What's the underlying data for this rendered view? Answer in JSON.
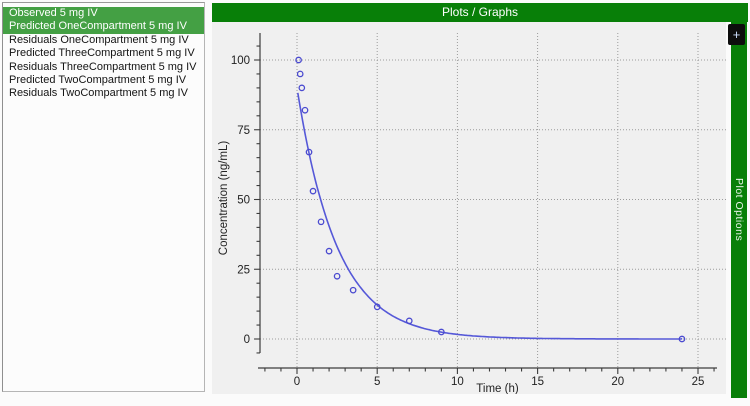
{
  "header": {
    "title": "Plots / Graphs"
  },
  "sidebar": {
    "items": [
      {
        "label": "Observed 5 mg IV",
        "selected": true
      },
      {
        "label": "Predicted OneCompartment 5 mg IV",
        "selected": true
      },
      {
        "label": "Residuals OneCompartment 5 mg IV",
        "selected": false
      },
      {
        "label": "Predicted ThreeCompartment 5 mg IV",
        "selected": false
      },
      {
        "label": "Residuals ThreeCompartment 5 mg IV",
        "selected": false
      },
      {
        "label": "Predicted TwoCompartment 5 mg IV",
        "selected": false
      },
      {
        "label": "Residuals TwoCompartment 5 mg IV",
        "selected": false
      }
    ]
  },
  "side_tab": {
    "label": "Plot Options",
    "add_button_label": "+"
  },
  "colors": {
    "header_green": "#087f08",
    "selection_green": "#44a044",
    "plot_bg": "#f0f0f0",
    "grid_gray": "#9b9b9b",
    "axis_gray": "#3c3c3c",
    "tick_text": "#222222",
    "curve_blue": "#5558d8",
    "point_blue": "#4a4ad0",
    "button_black": "#0d0d0d"
  },
  "chart_data": {
    "type": "scatter",
    "title": "",
    "xlabel": "Time (h)",
    "ylabel": "Concentration (ng/mL)",
    "xlim": [
      -2,
      26.5
    ],
    "ylim": [
      -5,
      109
    ],
    "xticks": [
      0,
      5,
      10,
      15,
      20,
      25
    ],
    "yticks": [
      0,
      25,
      50,
      75,
      100
    ],
    "x_minor_step": 1,
    "y_minor_step": 5,
    "grid": "dotted",
    "legend": "none",
    "series": [
      {
        "name": "Observed 5 mg IV",
        "type": "scatter",
        "marker": "open-circle",
        "x": [
          0.1,
          0.2,
          0.3,
          0.5,
          0.75,
          1,
          1.5,
          2,
          2.5,
          3.5,
          5,
          7,
          9,
          24
        ],
        "y": [
          100,
          95,
          90,
          82,
          67,
          53,
          42,
          31.5,
          22.5,
          17.5,
          11.5,
          6.5,
          2.5,
          0
        ]
      },
      {
        "name": "Predicted OneCompartment 5 mg IV",
        "type": "line",
        "model": "C0*exp(-k*t)",
        "params": {
          "C0": 90,
          "k": 0.4
        },
        "t_range": [
          0.05,
          24
        ]
      }
    ]
  }
}
